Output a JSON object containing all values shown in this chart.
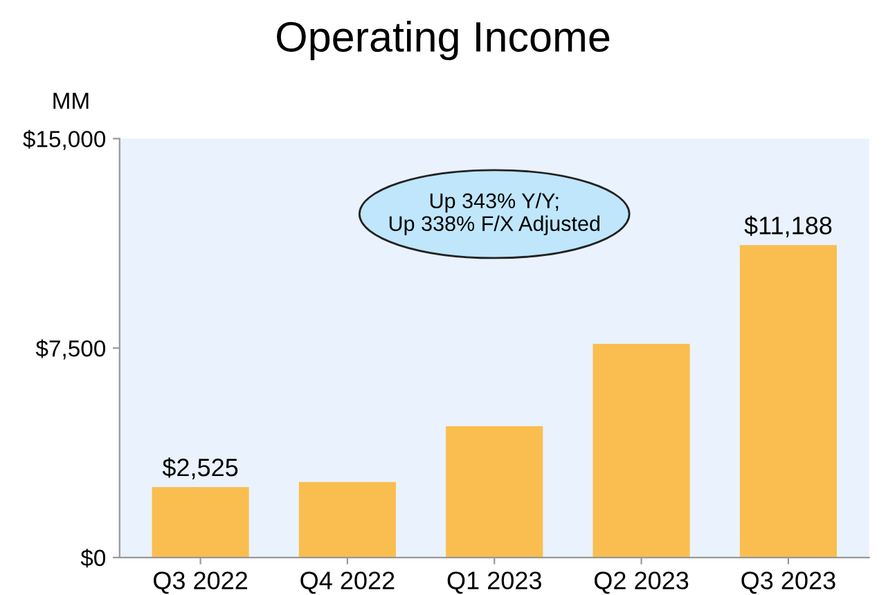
{
  "chart_data": {
    "type": "bar",
    "title": "Operating Income",
    "ylabel": "MM",
    "categories": [
      "Q3 2022",
      "Q4 2022",
      "Q1 2023",
      "Q2 2023",
      "Q3 2023"
    ],
    "values": [
      2525,
      2700,
      4700,
      7650,
      11188
    ],
    "value_labels": [
      "$2,525",
      null,
      null,
      null,
      "$11,188"
    ],
    "color": "#f9be4f",
    "ylim": [
      0,
      15000
    ],
    "yticks": [
      {
        "value": 0,
        "label": "$0"
      },
      {
        "value": 7500,
        "label": "$7,500"
      },
      {
        "value": 15000,
        "label": "$15,000"
      }
    ],
    "annotations": [
      "Up 343% Y/Y;\nUp 338% F/X Adjusted"
    ],
    "grid": false,
    "legend": false
  }
}
